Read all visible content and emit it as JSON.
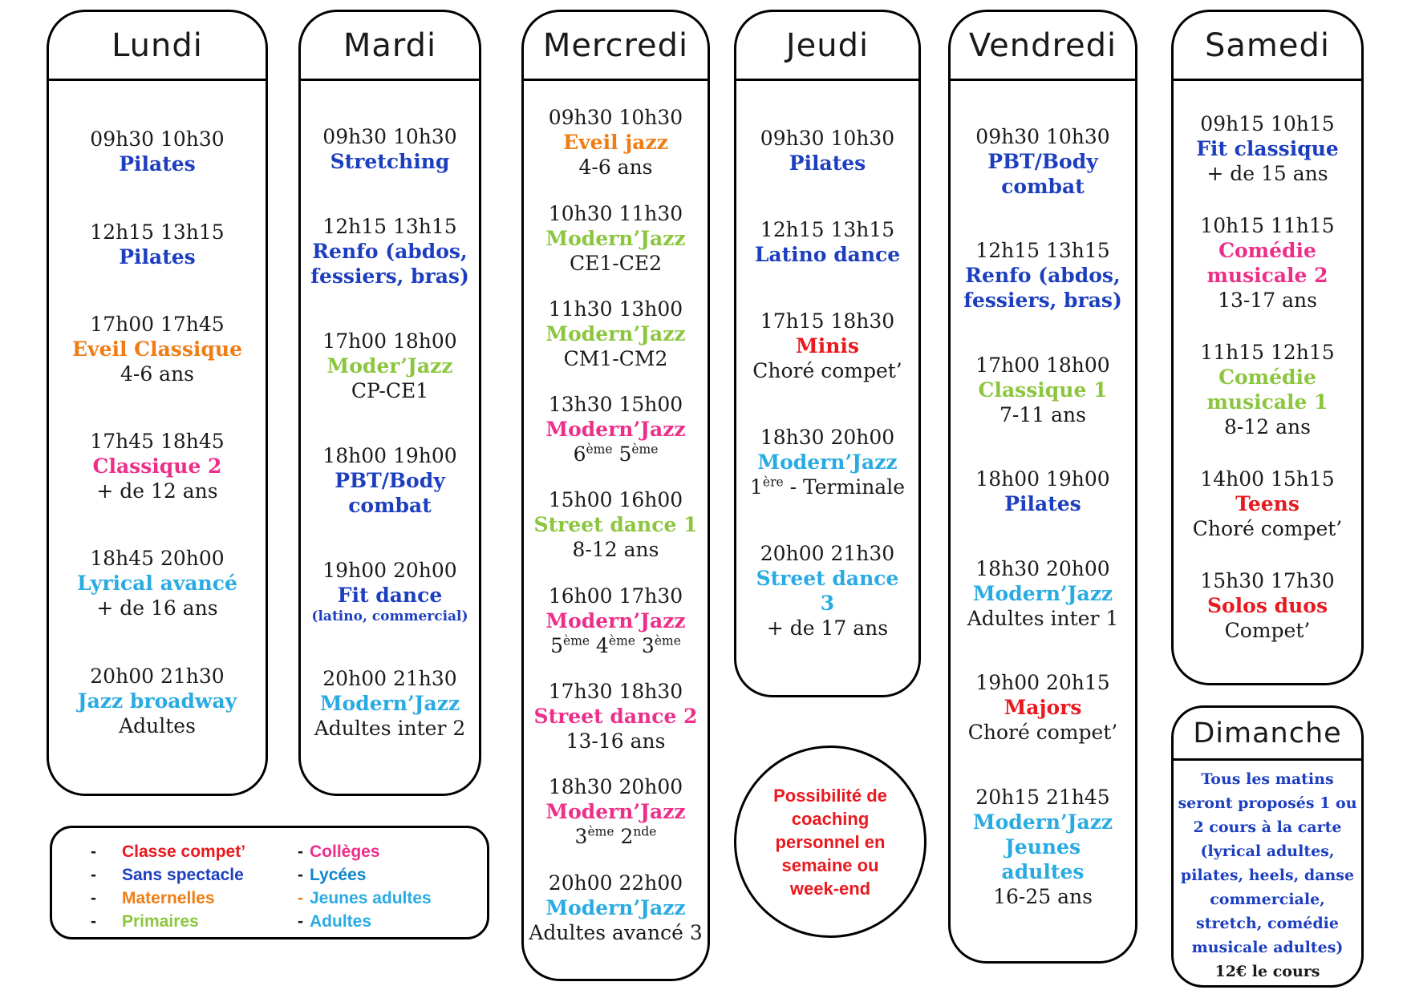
{
  "palette": {
    "blue": "#1d3fbf",
    "cyan": "#29abe2",
    "green": "#8cc63f",
    "orange": "#ee7d15",
    "pink": "#ed2f8a",
    "red": "#e8191f",
    "mid_blue": "#0e86cc",
    "black": "#1a1a1a"
  },
  "days": [
    {
      "name": "Lundi",
      "slots": [
        {
          "lines": [
            {
              "t": "09h30 10h30",
              "s": "time"
            },
            {
              "t": "Pilates",
              "s": "title",
              "c": "blue"
            }
          ]
        },
        {
          "lines": [
            {
              "t": "12h15 13h15",
              "s": "time"
            },
            {
              "t": "Pilates",
              "s": "title",
              "c": "blue"
            }
          ]
        },
        {
          "lines": [
            {
              "t": "17h00 17h45",
              "s": "time"
            },
            {
              "t": "Eveil Classique",
              "s": "title",
              "c": "orange"
            },
            {
              "t": "4-6 ans",
              "s": "sub"
            }
          ]
        },
        {
          "lines": [
            {
              "t": "17h45 18h45",
              "s": "time"
            },
            {
              "t": "Classique 2",
              "s": "title",
              "c": "pink"
            },
            {
              "t": "+ de 12 ans",
              "s": "sub"
            }
          ]
        },
        {
          "lines": [
            {
              "t": "18h45 20h00",
              "s": "time"
            },
            {
              "t": "Lyrical avancé",
              "s": "title",
              "c": "cyan"
            },
            {
              "t": "+ de 16 ans",
              "s": "sub"
            }
          ]
        },
        {
          "lines": [
            {
              "t": "20h00 21h30",
              "s": "time"
            },
            {
              "t": "Jazz broadway",
              "s": "title",
              "c": "cyan"
            },
            {
              "t": "Adultes",
              "s": "sub"
            }
          ]
        }
      ]
    },
    {
      "name": "Mardi",
      "slots": [
        {
          "lines": [
            {
              "t": "09h30 10h30",
              "s": "time"
            },
            {
              "t": "Stretching",
              "s": "title",
              "c": "blue"
            }
          ]
        },
        {
          "lines": [
            {
              "t": "12h15 13h15",
              "s": "time"
            },
            {
              "t": "Renfo (abdos,",
              "s": "title",
              "c": "blue"
            },
            {
              "t": "fessiers, bras)",
              "s": "title",
              "c": "blue"
            }
          ]
        },
        {
          "lines": [
            {
              "t": "17h00 18h00",
              "s": "time"
            },
            {
              "t": "Moder’Jazz",
              "s": "title",
              "c": "green"
            },
            {
              "t": "CP-CE1",
              "s": "sub"
            }
          ]
        },
        {
          "lines": [
            {
              "t": "18h00 19h00",
              "s": "time"
            },
            {
              "t": "PBT/Body",
              "s": "title",
              "c": "blue"
            },
            {
              "t": "combat",
              "s": "title",
              "c": "blue"
            }
          ]
        },
        {
          "lines": [
            {
              "t": "19h00 20h00",
              "s": "time"
            },
            {
              "t": "Fit dance",
              "s": "title",
              "c": "blue"
            },
            {
              "t": "(latino, commercial)",
              "s": "small",
              "c": "blue"
            }
          ]
        },
        {
          "lines": [
            {
              "t": "20h00 21h30",
              "s": "time"
            },
            {
              "t": "Modern’Jazz",
              "s": "title",
              "c": "cyan"
            },
            {
              "t": "Adultes inter 2",
              "s": "sub"
            }
          ]
        }
      ]
    },
    {
      "name": "Mercredi",
      "slots": [
        {
          "lines": [
            {
              "t": "09h30 10h30",
              "s": "time"
            },
            {
              "t": "Eveil jazz",
              "s": "title",
              "c": "orange"
            },
            {
              "t": "4-6 ans",
              "s": "sub"
            }
          ]
        },
        {
          "lines": [
            {
              "t": "10h30 11h30",
              "s": "time"
            },
            {
              "t": "Modern’Jazz",
              "s": "title",
              "c": "green"
            },
            {
              "t": "CE1-CE2",
              "s": "sub"
            }
          ]
        },
        {
          "lines": [
            {
              "t": "11h30 13h00",
              "s": "time"
            },
            {
              "t": "Modern’Jazz",
              "s": "title",
              "c": "green"
            },
            {
              "t": "CM1-CM2",
              "s": "sub"
            }
          ]
        },
        {
          "lines": [
            {
              "t": "13h30 15h00",
              "s": "time"
            },
            {
              "t": "Modern’Jazz",
              "s": "title",
              "c": "pink"
            },
            {
              "t": "6ème 5ème",
              "s": "sub"
            }
          ]
        },
        {
          "lines": [
            {
              "t": "15h00 16h00",
              "s": "time"
            },
            {
              "t": "Street dance 1",
              "s": "title",
              "c": "green"
            },
            {
              "t": "8-12 ans",
              "s": "sub"
            }
          ]
        },
        {
          "lines": [
            {
              "t": "16h00 17h30",
              "s": "time"
            },
            {
              "t": "Modern’Jazz",
              "s": "title",
              "c": "pink"
            },
            {
              "t": "5ème 4ème 3ème",
              "s": "sub"
            }
          ]
        },
        {
          "lines": [
            {
              "t": "17h30 18h30",
              "s": "time"
            },
            {
              "t": "Street dance 2",
              "s": "title",
              "c": "pink"
            },
            {
              "t": "13-16 ans",
              "s": "sub"
            }
          ]
        },
        {
          "lines": [
            {
              "t": "18h30 20h00",
              "s": "time"
            },
            {
              "t": "Modern’Jazz",
              "s": "title",
              "c": "pink"
            },
            {
              "t": "3ème 2nde",
              "s": "sub"
            }
          ]
        },
        {
          "lines": [
            {
              "t": "20h00 22h00",
              "s": "time"
            },
            {
              "t": "Modern’Jazz",
              "s": "title",
              "c": "cyan"
            },
            {
              "t": "Adultes avancé 3",
              "s": "sub"
            }
          ]
        }
      ]
    },
    {
      "name": "Jeudi",
      "slots": [
        {
          "lines": [
            {
              "t": "09h30 10h30",
              "s": "time"
            },
            {
              "t": "Pilates",
              "s": "title",
              "c": "blue"
            }
          ]
        },
        {
          "lines": [
            {
              "t": "12h15 13h15",
              "s": "time"
            },
            {
              "t": "Latino dance",
              "s": "title",
              "c": "blue"
            }
          ]
        },
        {
          "lines": [
            {
              "t": "17h15 18h30",
              "s": "time"
            },
            {
              "t": "Minis",
              "s": "title",
              "c": "red"
            },
            {
              "t": "Choré compet’",
              "s": "sub"
            }
          ]
        },
        {
          "lines": [
            {
              "t": "18h30 20h00",
              "s": "time"
            },
            {
              "t": "Modern’Jazz",
              "s": "title",
              "c": "cyan"
            },
            {
              "t": "1ère - Terminale",
              "s": "sub"
            }
          ]
        },
        {
          "lines": [
            {
              "t": "20h00 21h30",
              "s": "time"
            },
            {
              "t": "Street dance",
              "s": "title",
              "c": "cyan"
            },
            {
              "t": "3",
              "s": "title",
              "c": "cyan"
            },
            {
              "t": "+ de 17 ans",
              "s": "sub"
            }
          ]
        }
      ]
    },
    {
      "name": "Vendredi",
      "slots": [
        {
          "lines": [
            {
              "t": "09h30 10h30",
              "s": "time"
            },
            {
              "t": "PBT/Body",
              "s": "title",
              "c": "blue"
            },
            {
              "t": "combat",
              "s": "title",
              "c": "blue"
            }
          ]
        },
        {
          "lines": [
            {
              "t": "12h15 13h15",
              "s": "time"
            },
            {
              "t": "Renfo (abdos,",
              "s": "title",
              "c": "blue"
            },
            {
              "t": "fessiers, bras)",
              "s": "title",
              "c": "blue"
            }
          ]
        },
        {
          "lines": [
            {
              "t": "17h00 18h00",
              "s": "time"
            },
            {
              "t": "Classique 1",
              "s": "title",
              "c": "green"
            },
            {
              "t": "7-11 ans",
              "s": "sub"
            }
          ]
        },
        {
          "lines": [
            {
              "t": "18h00 19h00",
              "s": "time"
            },
            {
              "t": "Pilates",
              "s": "title",
              "c": "blue"
            }
          ]
        },
        {
          "lines": [
            {
              "t": "18h30 20h00",
              "s": "time"
            },
            {
              "t": "Modern’Jazz",
              "s": "title",
              "c": "cyan"
            },
            {
              "t": "Adultes inter 1",
              "s": "sub"
            }
          ]
        },
        {
          "lines": [
            {
              "t": "19h00 20h15",
              "s": "time"
            },
            {
              "t": "Majors",
              "s": "title",
              "c": "red"
            },
            {
              "t": "Choré compet’",
              "s": "sub"
            }
          ]
        },
        {
          "lines": [
            {
              "t": "20h15 21h45",
              "s": "time"
            },
            {
              "t": "Modern’Jazz",
              "s": "title",
              "c": "cyan"
            },
            {
              "t": "Jeunes",
              "s": "title",
              "c": "cyan"
            },
            {
              "t": "adultes",
              "s": "title",
              "c": "cyan"
            },
            {
              "t": "16-25 ans",
              "s": "sub"
            }
          ]
        }
      ]
    },
    {
      "name": "Samedi",
      "slots": [
        {
          "lines": [
            {
              "t": "09h15 10h15",
              "s": "time"
            },
            {
              "t": "Fit classique",
              "s": "title",
              "c": "blue"
            },
            {
              "t": "+ de 15 ans",
              "s": "sub"
            }
          ]
        },
        {
          "lines": [
            {
              "t": "10h15 11h15",
              "s": "time"
            },
            {
              "t": "Comédie",
              "s": "title",
              "c": "pink"
            },
            {
              "t": "musicale 2",
              "s": "title",
              "c": "pink"
            },
            {
              "t": "13-17 ans",
              "s": "sub"
            }
          ]
        },
        {
          "lines": [
            {
              "t": "11h15 12h15",
              "s": "time"
            },
            {
              "t": "Comédie",
              "s": "title",
              "c": "green"
            },
            {
              "t": "musicale 1",
              "s": "title",
              "c": "green"
            },
            {
              "t": "8-12 ans",
              "s": "sub"
            }
          ]
        },
        {
          "lines": [
            {
              "t": "14h00 15h15",
              "s": "time"
            },
            {
              "t": "Teens",
              "s": "title",
              "c": "red"
            },
            {
              "t": "Choré compet’",
              "s": "sub"
            }
          ]
        },
        {
          "lines": [
            {
              "t": "15h30 17h30",
              "s": "time"
            },
            {
              "t": "Solos duos",
              "s": "title",
              "c": "red"
            },
            {
              "t": "Compet’",
              "s": "sub"
            }
          ]
        }
      ]
    }
  ],
  "sunday": {
    "name": "Dimanche",
    "body_lines": [
      "Tous les matins",
      "seront proposés 1 ou",
      "2 cours à la carte",
      "(lyrical adultes,",
      "pilates, heels, danse",
      "commerciale,",
      "stretch, comédie",
      "musicale adultes)"
    ],
    "price_line": "12€ le cours"
  },
  "coaching_note": {
    "lines": [
      "Possibilité de",
      "coaching",
      "personnel en",
      "semaine ou",
      "week-end"
    ]
  },
  "legend": {
    "left": [
      {
        "label": "Classe compet’",
        "c": "red",
        "dash_c": "black"
      },
      {
        "label": "Sans spectacle",
        "c": "blue",
        "dash_c": "black"
      },
      {
        "label": "Maternelles",
        "c": "orange",
        "dash_c": "black"
      },
      {
        "label": "Primaires",
        "c": "green",
        "dash_c": "black"
      }
    ],
    "right": [
      {
        "label": "Collèges",
        "c": "pink",
        "dash_c": "black"
      },
      {
        "label": "Lycées",
        "c": "mid_blue",
        "dash_c": "black"
      },
      {
        "label": "Jeunes adultes",
        "c": "cyan",
        "dash_c": "orange"
      },
      {
        "label": "Adultes",
        "c": "cyan",
        "dash_c": "black"
      }
    ]
  }
}
